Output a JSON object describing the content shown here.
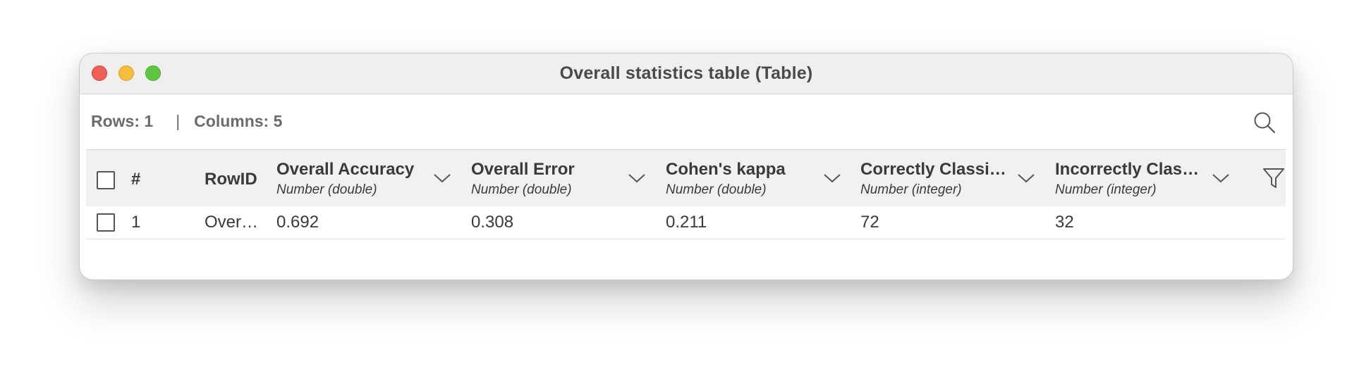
{
  "window": {
    "title": "Overall statistics table (Table)"
  },
  "info": {
    "rows_label": "Rows: 1",
    "separator": "|",
    "columns_label": "Columns: 5"
  },
  "table": {
    "headers": {
      "index": "#",
      "rowid": "RowID",
      "columns": [
        {
          "name": "Overall Accuracy",
          "type": "Number (double)"
        },
        {
          "name": "Overall Error",
          "type": "Number (double)"
        },
        {
          "name": "Cohen's kappa",
          "type": "Number (double)"
        },
        {
          "name": "Correctly Classi…",
          "type": "Number (integer)"
        },
        {
          "name": "Incorrectly Clas…",
          "type": "Number (integer)"
        }
      ]
    },
    "rows": [
      {
        "index": "1",
        "rowid": "Over…",
        "values": [
          "0.692",
          "0.308",
          "0.211",
          "72",
          "32"
        ]
      }
    ]
  },
  "icons": {
    "search": "search-icon",
    "filter": "filter-icon",
    "sort": "chevron-down-icon"
  }
}
